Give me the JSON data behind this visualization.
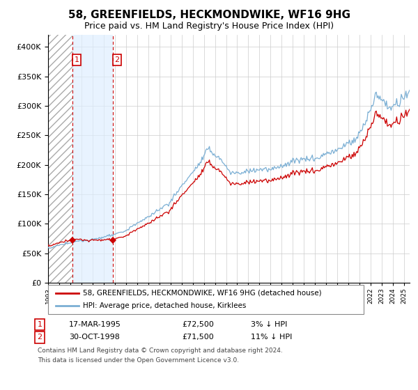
{
  "title": "58, GREENFIELDS, HECKMONDWIKE, WF16 9HG",
  "subtitle": "Price paid vs. HM Land Registry's House Price Index (HPI)",
  "legend_line1": "58, GREENFIELDS, HECKMONDWIKE, WF16 9HG (detached house)",
  "legend_line2": "HPI: Average price, detached house, Kirklees",
  "footnote_line1": "Contains HM Land Registry data © Crown copyright and database right 2024.",
  "footnote_line2": "This data is licensed under the Open Government Licence v3.0.",
  "transaction1_date": "17-MAR-1995",
  "transaction1_price": "£72,500",
  "transaction1_label": "1",
  "transaction1_hpi": "3% ↓ HPI",
  "transaction1_year": 1995.21,
  "transaction2_date": "30-OCT-1998",
  "transaction2_price": "£71,500",
  "transaction2_label": "2",
  "transaction2_hpi": "11% ↓ HPI",
  "transaction2_year": 1998.83,
  "transaction1_price_val": 72500,
  "transaction2_price_val": 71500,
  "hpi_color": "#7bafd4",
  "property_color": "#cc0000",
  "dot_color": "#cc0000",
  "vline_color": "#cc0000",
  "shade_color": "#ddeeff",
  "ylim": [
    0,
    420000
  ],
  "yticks": [
    0,
    50000,
    100000,
    150000,
    200000,
    250000,
    300000,
    350000,
    400000
  ],
  "xlim_start": 1993.0,
  "xlim_end": 2025.5,
  "background_color": "#ffffff",
  "grid_color": "#cccccc"
}
